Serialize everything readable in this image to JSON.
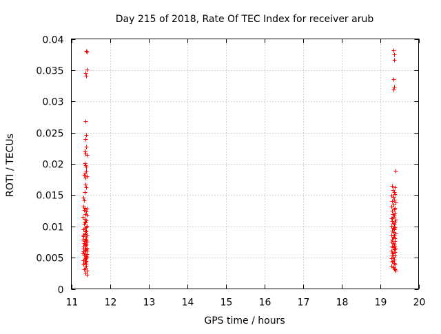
{
  "chart_data": {
    "type": "scatter",
    "title": "Day 215 of 2018, Rate Of TEC Index for receiver arub",
    "xlabel": "GPS time / hours",
    "ylabel": "ROTI / TECUs",
    "xlim": [
      11,
      20
    ],
    "ylim": [
      0,
      0.04
    ],
    "xticks": [
      11,
      12,
      13,
      14,
      15,
      16,
      17,
      18,
      19,
      20
    ],
    "xtick_labels": [
      "11",
      "12",
      "13",
      "14",
      "15",
      "16",
      "17",
      "18",
      "19",
      "20"
    ],
    "yticks": [
      0,
      0.005,
      0.01,
      0.015,
      0.02,
      0.025,
      0.03,
      0.035,
      0.04
    ],
    "ytick_labels": [
      "0",
      "0.005",
      "0.01",
      "0.015",
      "0.02",
      "0.025",
      "0.03",
      "0.035",
      "0.04"
    ],
    "grid": true,
    "marker": "+",
    "color": "#ff0000",
    "series": [
      {
        "name": "arub",
        "points": [
          [
            11.38,
            0.0381
          ],
          [
            11.41,
            0.038
          ],
          [
            11.4,
            0.0351
          ],
          [
            11.37,
            0.0345
          ],
          [
            11.39,
            0.0341
          ],
          [
            11.37,
            0.0268
          ],
          [
            11.39,
            0.0246
          ],
          [
            11.36,
            0.024
          ],
          [
            11.38,
            0.0227
          ],
          [
            11.35,
            0.0221
          ],
          [
            11.37,
            0.0216
          ],
          [
            11.4,
            0.0214
          ],
          [
            11.34,
            0.0201
          ],
          [
            11.36,
            0.0198
          ],
          [
            11.38,
            0.0196
          ],
          [
            11.39,
            0.0189
          ],
          [
            11.35,
            0.0185
          ],
          [
            11.33,
            0.0182
          ],
          [
            11.4,
            0.018
          ],
          [
            11.37,
            0.0178
          ],
          [
            11.36,
            0.0167
          ],
          [
            11.38,
            0.0162
          ],
          [
            11.35,
            0.0155
          ],
          [
            11.31,
            0.0146
          ],
          [
            11.33,
            0.0142
          ],
          [
            11.32,
            0.0132
          ],
          [
            11.35,
            0.013
          ],
          [
            11.4,
            0.0128
          ],
          [
            11.33,
            0.0126
          ],
          [
            11.38,
            0.0124
          ],
          [
            11.36,
            0.012
          ],
          [
            11.41,
            0.0118
          ],
          [
            11.3,
            0.0115
          ],
          [
            11.34,
            0.0112
          ],
          [
            11.39,
            0.011
          ],
          [
            11.37,
            0.0106
          ],
          [
            11.33,
            0.0104
          ],
          [
            11.4,
            0.0101
          ],
          [
            11.35,
            0.0098
          ],
          [
            11.31,
            0.0095
          ],
          [
            11.38,
            0.0093
          ],
          [
            11.36,
            0.009
          ],
          [
            11.34,
            0.0088
          ],
          [
            11.41,
            0.0086
          ],
          [
            11.32,
            0.0084
          ],
          [
            11.39,
            0.0082
          ],
          [
            11.37,
            0.008
          ],
          [
            11.3,
            0.0079
          ],
          [
            11.35,
            0.0077
          ],
          [
            11.4,
            0.0075
          ],
          [
            11.33,
            0.0073
          ],
          [
            11.38,
            0.0071
          ],
          [
            11.36,
            0.007
          ],
          [
            11.31,
            0.0068
          ],
          [
            11.41,
            0.0066
          ],
          [
            11.34,
            0.0065
          ],
          [
            11.39,
            0.0063
          ],
          [
            11.37,
            0.0062
          ],
          [
            11.32,
            0.006
          ],
          [
            11.35,
            0.0058
          ],
          [
            11.3,
            0.0057
          ],
          [
            11.4,
            0.0056
          ],
          [
            11.33,
            0.0054
          ],
          [
            11.38,
            0.0052
          ],
          [
            11.36,
            0.0051
          ],
          [
            11.41,
            0.005
          ],
          [
            11.34,
            0.0048
          ],
          [
            11.31,
            0.0046
          ],
          [
            11.39,
            0.0045
          ],
          [
            11.37,
            0.0043
          ],
          [
            11.35,
            0.0041
          ],
          [
            11.32,
            0.0039
          ],
          [
            11.38,
            0.0037
          ],
          [
            11.36,
            0.0034
          ],
          [
            11.33,
            0.0031
          ],
          [
            11.4,
            0.0029
          ],
          [
            11.37,
            0.0026
          ],
          [
            11.41,
            0.0023
          ],
          [
            11.34,
            0.0107
          ],
          [
            11.38,
            0.0099
          ],
          [
            11.36,
            0.0092
          ],
          [
            11.32,
            0.0087
          ],
          [
            11.39,
            0.0078
          ],
          [
            11.35,
            0.0072
          ],
          [
            11.31,
            0.0064
          ],
          [
            11.4,
            0.0061
          ],
          [
            11.33,
            0.0055
          ],
          [
            11.37,
            0.0049
          ],
          [
            11.34,
            0.0044
          ],
          [
            11.38,
            0.004
          ],
          [
            19.35,
            0.0382
          ],
          [
            19.37,
            0.0375
          ],
          [
            19.36,
            0.0366
          ],
          [
            19.34,
            0.0336
          ],
          [
            19.36,
            0.0323
          ],
          [
            19.35,
            0.0319
          ],
          [
            19.4,
            0.0189
          ],
          [
            19.31,
            0.0165
          ],
          [
            19.38,
            0.0162
          ],
          [
            19.33,
            0.0158
          ],
          [
            19.36,
            0.0155
          ],
          [
            19.39,
            0.0152
          ],
          [
            19.3,
            0.0149
          ],
          [
            19.35,
            0.0147
          ],
          [
            19.37,
            0.0143
          ],
          [
            19.32,
            0.014
          ],
          [
            19.4,
            0.0138
          ],
          [
            19.34,
            0.0135
          ],
          [
            19.29,
            0.0132
          ],
          [
            19.38,
            0.013
          ],
          [
            19.36,
            0.0127
          ],
          [
            19.31,
            0.0125
          ],
          [
            19.39,
            0.0122
          ],
          [
            19.33,
            0.012
          ],
          [
            19.37,
            0.0117
          ],
          [
            19.35,
            0.0115
          ],
          [
            19.3,
            0.0113
          ],
          [
            19.4,
            0.0111
          ],
          [
            19.32,
            0.0109
          ],
          [
            19.38,
            0.0107
          ],
          [
            19.34,
            0.0105
          ],
          [
            19.36,
            0.0103
          ],
          [
            19.29,
            0.0101
          ],
          [
            19.39,
            0.0099
          ],
          [
            19.33,
            0.0097
          ],
          [
            19.37,
            0.0095
          ],
          [
            19.31,
            0.0093
          ],
          [
            19.35,
            0.0091
          ],
          [
            19.4,
            0.0089
          ],
          [
            19.3,
            0.0087
          ],
          [
            19.36,
            0.0085
          ],
          [
            19.34,
            0.0083
          ],
          [
            19.38,
            0.0081
          ],
          [
            19.32,
            0.0079
          ],
          [
            19.39,
            0.0077
          ],
          [
            19.29,
            0.0075
          ],
          [
            19.35,
            0.0073
          ],
          [
            19.37,
            0.0071
          ],
          [
            19.31,
            0.0069
          ],
          [
            19.33,
            0.0067
          ],
          [
            19.4,
            0.0065
          ],
          [
            19.36,
            0.0063
          ],
          [
            19.3,
            0.0061
          ],
          [
            19.38,
            0.0059
          ],
          [
            19.34,
            0.0057
          ],
          [
            19.32,
            0.0055
          ],
          [
            19.39,
            0.0053
          ],
          [
            19.35,
            0.0051
          ],
          [
            19.29,
            0.0049
          ],
          [
            19.37,
            0.0047
          ],
          [
            19.33,
            0.0045
          ],
          [
            19.31,
            0.0043
          ],
          [
            19.36,
            0.0041
          ],
          [
            19.38,
            0.0039
          ],
          [
            19.3,
            0.0037
          ],
          [
            19.34,
            0.0035
          ],
          [
            19.37,
            0.0033
          ],
          [
            19.39,
            0.0031
          ],
          [
            19.4,
            0.0029
          ],
          [
            19.32,
            0.0113
          ],
          [
            19.36,
            0.0096
          ],
          [
            19.34,
            0.0082
          ],
          [
            19.38,
            0.0068
          ],
          [
            19.31,
            0.0058
          ]
        ]
      }
    ]
  }
}
